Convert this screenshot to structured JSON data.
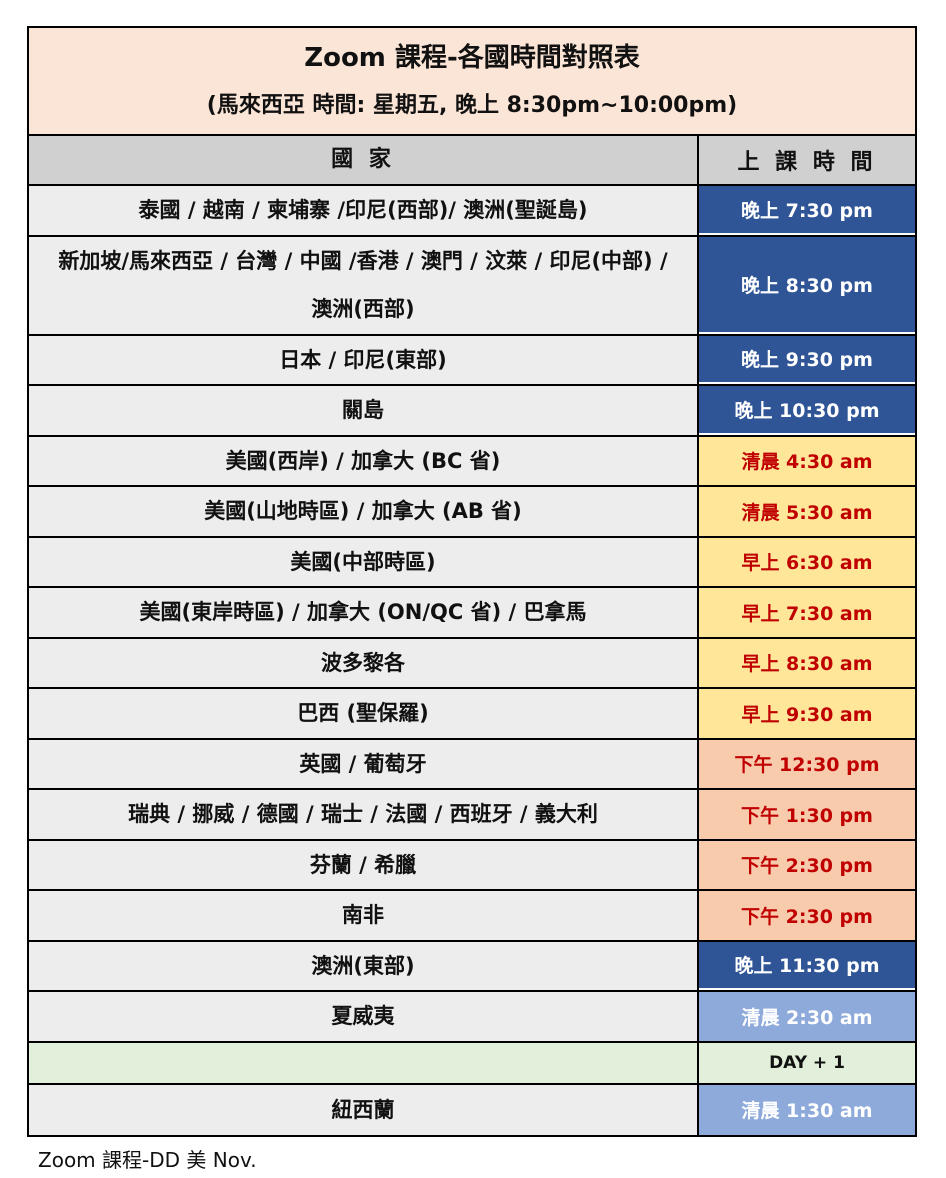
{
  "title": "Zoom 課程-各國時間對照表",
  "subtitle": "(馬來西亞 時間: 星期五, 晚上 8:30pm~10:00pm)",
  "header": {
    "country": "國 家",
    "time": "上 課 時 間"
  },
  "colors": {
    "dark_blue": "#2f5597",
    "yellow": "#ffe699",
    "salmon": "#f8cbad",
    "light_blue": "#8eaadb",
    "green": "#e2efda",
    "red_text": "#c00000"
  },
  "rows": [
    {
      "country": "泰國 / 越南 / 柬埔寨 /印尼(西部)/ 澳洲(聖誕島)",
      "time": "晚上 7:30  pm",
      "style": "dark_blue"
    },
    {
      "country": "新加坡/馬來西亞 / 台灣 / 中國 /香港 / 澳門 / 汶萊 / 印尼(中部) / 澳洲(西部)",
      "time": "晚上 8:30 pm",
      "style": "dark_blue",
      "tall": true
    },
    {
      "country": "日本 /  印尼(東部)",
      "time": "晚上 9:30 pm",
      "style": "dark_blue"
    },
    {
      "country": "關島",
      "time": "晚上 10:30 pm",
      "style": "dark_blue"
    },
    {
      "country": "美國(西岸)  / 加拿大 (BC 省)",
      "time": "清晨 4:30 am",
      "style": "yellow"
    },
    {
      "country": "美國(山地時區)  / 加拿大 (AB 省)",
      "time": "清晨 5:30 am",
      "style": "yellow"
    },
    {
      "country": "美國(中部時區)",
      "time": "早上 6:30 am",
      "style": "yellow"
    },
    {
      "country": "美國(東岸時區)  / 加拿大 (ON/QC 省) / 巴拿馬",
      "time": "早上 7:30 am",
      "style": "yellow"
    },
    {
      "country": "波多黎各",
      "time": "早上 8:30 am",
      "style": "yellow"
    },
    {
      "country": "巴西 (聖保羅)",
      "time": "早上 9:30 am",
      "style": "yellow"
    },
    {
      "country": "英國 / 葡萄牙",
      "time": "下午 12:30 pm",
      "style": "salmon"
    },
    {
      "country": "瑞典 / 挪威 / 德國 / 瑞士 / 法國 / 西班牙 / 義大利",
      "time": "下午 1:30 pm",
      "style": "salmon"
    },
    {
      "country": "芬蘭 / 希臘",
      "time": "下午 2:30 pm",
      "style": "salmon"
    },
    {
      "country": "南非",
      "time": "下午 2:30 pm",
      "style": "salmon"
    },
    {
      "country": "澳洲(東部)",
      "time": "晚上 11:30 pm",
      "style": "dark_blue"
    },
    {
      "country": "夏威夷",
      "time": "清晨 2:30 am",
      "style": "light_blue"
    },
    {
      "country": "",
      "time": "DAY + 1",
      "style": "green",
      "short": true
    },
    {
      "country": "紐西蘭",
      "time": "清晨 1:30 am",
      "style": "light_blue"
    }
  ],
  "footnote": "Zoom 課程-DD 美 Nov."
}
